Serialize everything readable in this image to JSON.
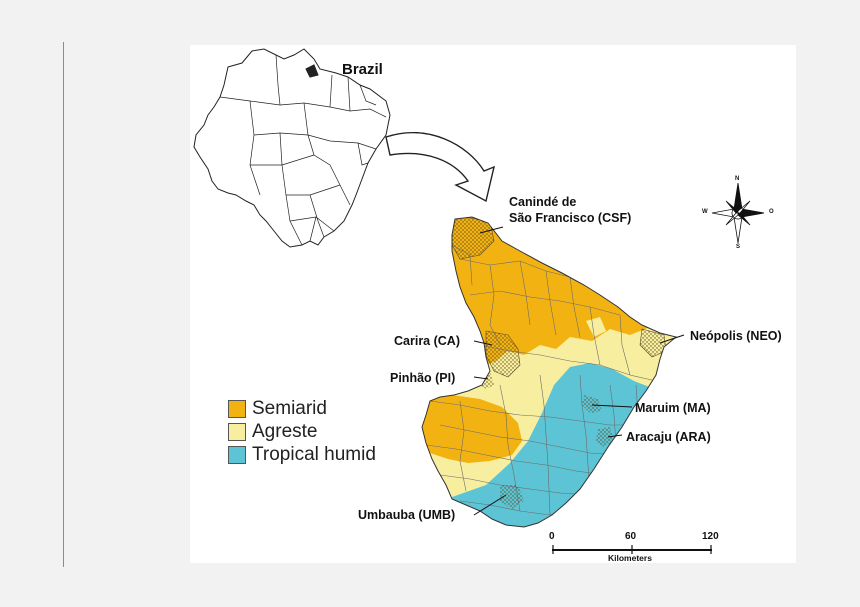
{
  "inset": {
    "country_label": "Brazil"
  },
  "legend": [
    {
      "label": "Semiarid",
      "color": "#f2b312"
    },
    {
      "label": "Agreste",
      "color": "#f7eea0"
    },
    {
      "label": "Tropical humid",
      "color": "#5cc4d4"
    }
  ],
  "sites": [
    {
      "label_line1": "Canindé de",
      "label_line2": "São Francisco (CSF)"
    },
    {
      "label": "Carira (CA)"
    },
    {
      "label": "Pinhão (PI)"
    },
    {
      "label": "Neópolis (NEO)"
    },
    {
      "label": "Maruim (MA)"
    },
    {
      "label": "Aracaju (ARA)"
    },
    {
      "label": "Umbauba (UMB)"
    }
  ],
  "compass": {
    "n": "N",
    "s": "S",
    "e": "O",
    "w": "W"
  },
  "scale_bar": {
    "ticks": [
      "0",
      "60",
      "120"
    ],
    "unit_label": "Kilometers"
  },
  "colors": {
    "semiarid": "#f2b312",
    "agreste": "#f7eea0",
    "tropical_humid": "#5cc4d4",
    "stipple": "#6b5a2a"
  }
}
